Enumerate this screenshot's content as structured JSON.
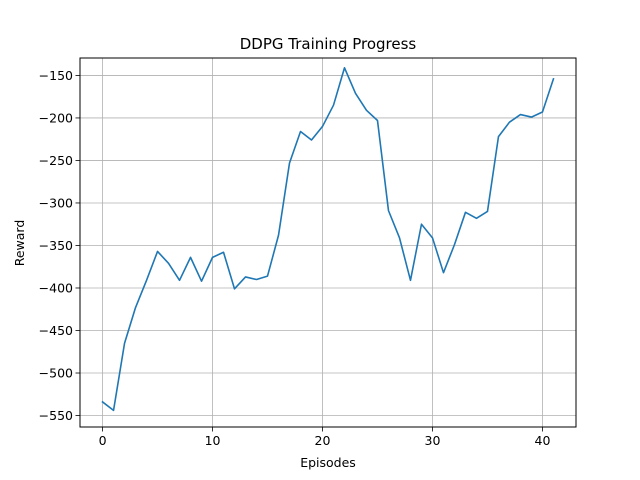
{
  "chart_data": {
    "type": "line",
    "title": "DDPG Training Progress",
    "xlabel": "Episodes",
    "ylabel": "Reward",
    "xlim": [
      -2.05,
      43.05
    ],
    "ylim": [
      -563.5,
      -129.5
    ],
    "xticks": [
      0,
      10,
      20,
      30,
      40
    ],
    "yticks": [
      -550,
      -500,
      -450,
      -400,
      -350,
      -300,
      -250,
      -200,
      -150
    ],
    "grid": true,
    "legend": "none",
    "line_color": "#1f77b4",
    "series": [
      {
        "x": [
          0,
          1,
          2,
          3,
          4,
          5,
          6,
          7,
          8,
          9,
          10,
          11,
          12,
          13,
          14,
          15,
          16,
          17,
          18,
          19,
          20,
          21,
          22,
          23,
          24,
          25,
          26,
          27,
          28,
          29,
          30,
          31,
          32,
          33,
          34,
          35,
          36,
          37,
          38,
          39,
          40,
          41
        ],
        "values": [
          -534,
          -544,
          -465,
          -423,
          -391,
          -357,
          -371,
          -391,
          -364,
          -392,
          -364,
          -358,
          -401,
          -387,
          -390,
          -386,
          -338,
          -253,
          -216,
          -226,
          -210,
          -185,
          -141,
          -171,
          -191,
          -203,
          -309,
          -341,
          -391,
          -325,
          -341,
          -382,
          -349,
          -311,
          -318,
          -310,
          -222,
          -205,
          -196,
          -199,
          -193,
          -154
        ]
      }
    ]
  }
}
